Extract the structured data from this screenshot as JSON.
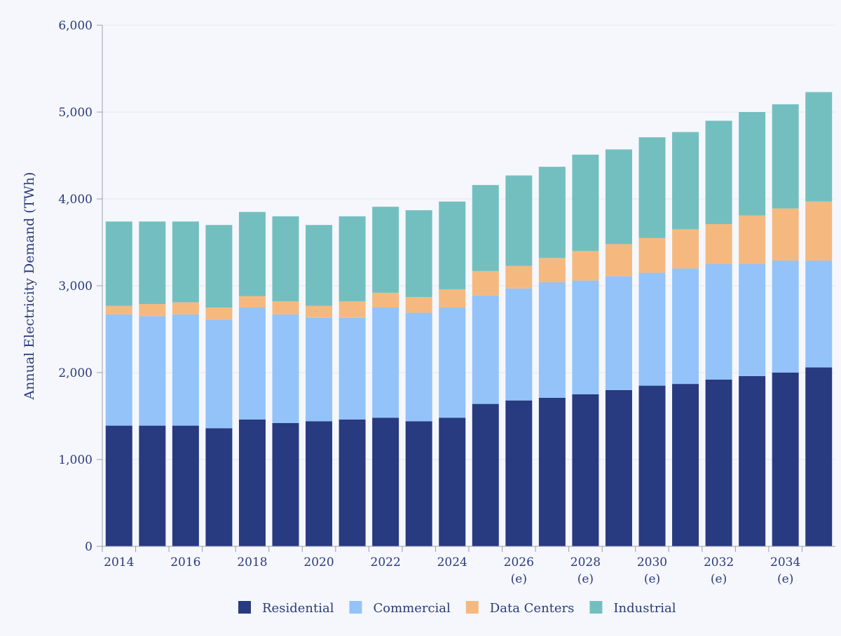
{
  "chart_data": {
    "type": "bar",
    "stacked": true,
    "title": "",
    "xlabel": "",
    "ylabel": "Annual Electricity Demand (TWh)",
    "ylim": [
      0,
      6000
    ],
    "yticks": [
      0,
      1000,
      2000,
      3000,
      4000,
      5000,
      6000
    ],
    "ytick_labels": [
      "0",
      "1,000",
      "2,000",
      "3,000",
      "4,000",
      "5,000",
      "6,000"
    ],
    "grid": "horizontal",
    "legend_placement": "bottom",
    "categories": [
      "2014",
      "2015",
      "2016",
      "2017",
      "2018",
      "2019",
      "2020",
      "2021",
      "2022",
      "2023",
      "2024",
      "2025",
      "2026",
      "2027",
      "2028",
      "2029",
      "2030",
      "2031",
      "2032",
      "2033",
      "2034",
      "2035"
    ],
    "xtick_labels": [
      {
        "category": "2014",
        "label": "2014",
        "note": ""
      },
      {
        "category": "2016",
        "label": "2016",
        "note": ""
      },
      {
        "category": "2018",
        "label": "2018",
        "note": ""
      },
      {
        "category": "2020",
        "label": "2020",
        "note": ""
      },
      {
        "category": "2022",
        "label": "2022",
        "note": ""
      },
      {
        "category": "2024",
        "label": "2024",
        "note": ""
      },
      {
        "category": "2026",
        "label": "2026",
        "note": "(e)"
      },
      {
        "category": "2028",
        "label": "2028",
        "note": "(e)"
      },
      {
        "category": "2030",
        "label": "2030",
        "note": "(e)"
      },
      {
        "category": "2032",
        "label": "2032",
        "note": "(e)"
      },
      {
        "category": "2034",
        "label": "2034",
        "note": "(e)"
      }
    ],
    "series": [
      {
        "name": "Residential",
        "color": "#283a80",
        "values": [
          1390,
          1390,
          1390,
          1360,
          1460,
          1420,
          1440,
          1460,
          1480,
          1440,
          1480,
          1640,
          1680,
          1710,
          1750,
          1800,
          1850,
          1870,
          1920,
          1960,
          2000,
          2060
        ]
      },
      {
        "name": "Commercial",
        "color": "#93c3f8",
        "values": [
          1280,
          1260,
          1280,
          1250,
          1290,
          1250,
          1190,
          1170,
          1270,
          1250,
          1270,
          1250,
          1290,
          1330,
          1310,
          1310,
          1300,
          1330,
          1330,
          1290,
          1290,
          1230
        ]
      },
      {
        "name": "Data Centers",
        "color": "#f5b97f",
        "values": [
          100,
          140,
          140,
          140,
          130,
          150,
          140,
          190,
          170,
          180,
          210,
          280,
          260,
          280,
          340,
          370,
          400,
          450,
          460,
          560,
          600,
          680
        ]
      },
      {
        "name": "Industrial",
        "color": "#73bfc0",
        "values": [
          970,
          950,
          930,
          950,
          970,
          980,
          930,
          980,
          990,
          1000,
          1010,
          990,
          1040,
          1050,
          1110,
          1090,
          1160,
          1120,
          1190,
          1190,
          1200,
          1260
        ]
      }
    ]
  }
}
